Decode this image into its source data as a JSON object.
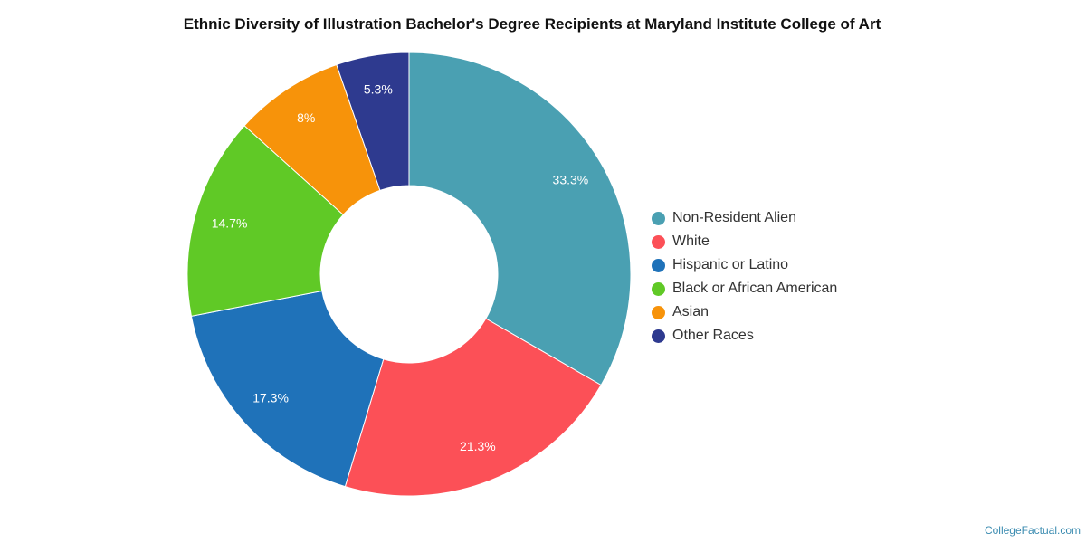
{
  "chart_data": {
    "type": "pie",
    "title": "Ethnic Diversity of Illustration Bachelor's Degree Recipients at Maryland Institute College of Art",
    "slices": [
      {
        "label": "Non-Resident Alien",
        "value": 33.3,
        "value_label": "33.3%",
        "color": "#4aa0b2"
      },
      {
        "label": "White",
        "value": 21.3,
        "value_label": "21.3%",
        "color": "#fc5057"
      },
      {
        "label": "Hispanic or Latino",
        "value": 17.3,
        "value_label": "17.3%",
        "color": "#1f72b9"
      },
      {
        "label": "Black or African American",
        "value": 14.7,
        "value_label": "14.7%",
        "color": "#60c926"
      },
      {
        "label": "Asian",
        "value": 8,
        "value_label": "8%",
        "color": "#f7930a"
      },
      {
        "label": "Other Races",
        "value": 5.3,
        "value_label": "5.3%",
        "color": "#2e3a8f"
      }
    ],
    "legend_position": "right"
  },
  "credit": "CollegeFactual.com"
}
